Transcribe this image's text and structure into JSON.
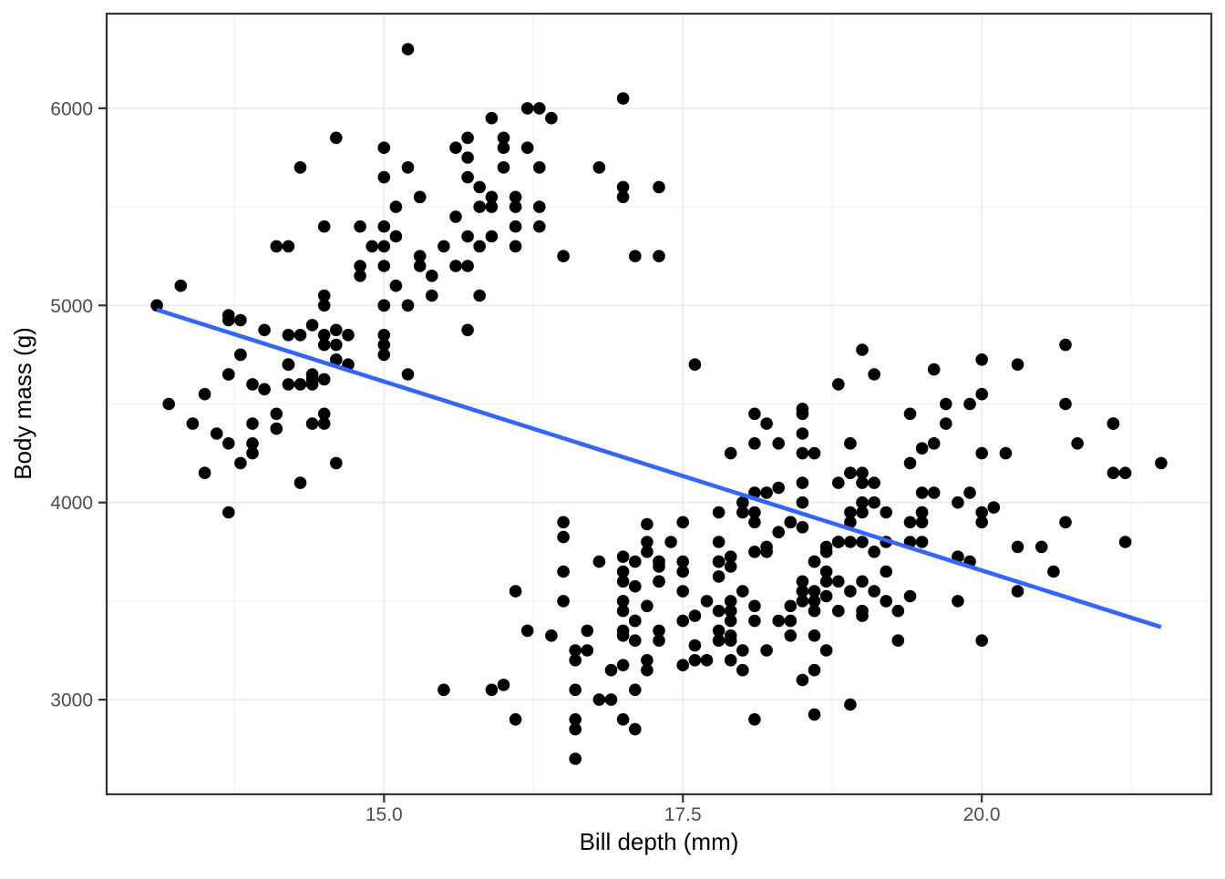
{
  "chart_data": {
    "type": "scatter",
    "title": "",
    "xlabel": "Bill depth (mm)",
    "ylabel": "Body mass (g)",
    "xlim": [
      12.68,
      21.92
    ],
    "ylim": [
      2520,
      6480
    ],
    "x_ticks": [
      15.0,
      17.5,
      20.0
    ],
    "x_tick_labels": [
      "15.0",
      "17.5",
      "20.0"
    ],
    "y_ticks": [
      3000,
      4000,
      5000,
      6000
    ],
    "y_tick_labels": [
      "3000",
      "4000",
      "5000",
      "6000"
    ],
    "x_minor_gridlines": [
      13.75,
      16.25,
      18.75,
      21.25
    ],
    "y_minor_gridlines": [
      3500,
      4500,
      5500
    ],
    "grid": true,
    "legend_position": "none",
    "colors": {
      "point": "#000000",
      "trend_line": "#3366FF",
      "panel_background": "#FFFFFF",
      "panel_border": "#333333",
      "grid_major": "#EBEBEB",
      "grid_minor": "#EFEFEF",
      "tick_mark": "#333333",
      "tick_text": "#4D4D4D",
      "axis_title": "#000000"
    },
    "trend_line": {
      "x_start": 13.1,
      "y_start": 4978,
      "x_end": 21.5,
      "y_end": 3368
    },
    "points": [
      [
        18.7,
        3750
      ],
      [
        17.4,
        3800
      ],
      [
        18,
        3250
      ],
      [
        19.3,
        3450
      ],
      [
        20.6,
        3650
      ],
      [
        17.8,
        3625
      ],
      [
        19.6,
        4675
      ],
      [
        18.1,
        3475
      ],
      [
        20.2,
        4250
      ],
      [
        17.1,
        3300
      ],
      [
        17.3,
        3700
      ],
      [
        17.6,
        3200
      ],
      [
        21.2,
        3800
      ],
      [
        21.1,
        4400
      ],
      [
        17.8,
        3700
      ],
      [
        19,
        3450
      ],
      [
        20.7,
        4500
      ],
      [
        18.4,
        3325
      ],
      [
        21.5,
        4200
      ],
      [
        18.3,
        3400
      ],
      [
        18.7,
        3600
      ],
      [
        19.2,
        3800
      ],
      [
        18.1,
        3950
      ],
      [
        17.2,
        3800
      ],
      [
        18.9,
        3800
      ],
      [
        18.6,
        3550
      ],
      [
        17.9,
        3200
      ],
      [
        18.6,
        3150
      ],
      [
        18.9,
        3950
      ],
      [
        16.7,
        3250
      ],
      [
        18.1,
        3900
      ],
      [
        17.8,
        3300
      ],
      [
        18.9,
        3900
      ],
      [
        17,
        3325
      ],
      [
        21.1,
        4150
      ],
      [
        20,
        3950
      ],
      [
        18.5,
        3550
      ],
      [
        19.3,
        3300
      ],
      [
        19.1,
        4650
      ],
      [
        18,
        3150
      ],
      [
        18.4,
        3900
      ],
      [
        18.5,
        3100
      ],
      [
        19.7,
        4400
      ],
      [
        16.9,
        3000
      ],
      [
        18.8,
        4600
      ],
      [
        19,
        3425
      ],
      [
        18.9,
        2975
      ],
      [
        17.9,
        3450
      ],
      [
        21.2,
        4150
      ],
      [
        17.7,
        3500
      ],
      [
        18.9,
        4300
      ],
      [
        17.9,
        3450
      ],
      [
        19.5,
        4050
      ],
      [
        18.1,
        2900
      ],
      [
        18.6,
        3700
      ],
      [
        17.5,
        3550
      ],
      [
        18.8,
        3800
      ],
      [
        16.6,
        2850
      ],
      [
        19.1,
        3750
      ],
      [
        16.9,
        3150
      ],
      [
        21.1,
        4400
      ],
      [
        17,
        3600
      ],
      [
        18.2,
        4050
      ],
      [
        17.1,
        2850
      ],
      [
        18,
        3950
      ],
      [
        16.2,
        3350
      ],
      [
        19.1,
        4100
      ],
      [
        16.6,
        3050
      ],
      [
        19.4,
        4450
      ],
      [
        19,
        3600
      ],
      [
        18.4,
        3900
      ],
      [
        17.2,
        3890
      ],
      [
        18.9,
        4150
      ],
      [
        17.5,
        3700
      ],
      [
        18.5,
        4250
      ],
      [
        16.8,
        3700
      ],
      [
        19.4,
        3900
      ],
      [
        16.1,
        3550
      ],
      [
        19.1,
        4000
      ],
      [
        17.2,
        3200
      ],
      [
        17.6,
        4700
      ],
      [
        18.8,
        3800
      ],
      [
        19.4,
        4200
      ],
      [
        17.8,
        3350
      ],
      [
        20.3,
        3550
      ],
      [
        19.5,
        3800
      ],
      [
        18.6,
        3500
      ],
      [
        19.2,
        3950
      ],
      [
        18.8,
        3600
      ],
      [
        18,
        3550
      ],
      [
        18.1,
        4300
      ],
      [
        17.1,
        3400
      ],
      [
        18.1,
        4450
      ],
      [
        17.3,
        3300
      ],
      [
        18.9,
        4300
      ],
      [
        18.6,
        3700
      ],
      [
        18.5,
        4350
      ],
      [
        16.1,
        2900
      ],
      [
        18.5,
        4100
      ],
      [
        17.9,
        3725
      ],
      [
        20,
        4725
      ],
      [
        16,
        3075
      ],
      [
        20,
        4250
      ],
      [
        18.6,
        2925
      ],
      [
        18.9,
        3550
      ],
      [
        17.2,
        3750
      ],
      [
        20,
        3900
      ],
      [
        17,
        3175
      ],
      [
        19,
        4775
      ],
      [
        16.5,
        3825
      ],
      [
        20.3,
        4700
      ],
      [
        17.7,
        3200
      ],
      [
        19.5,
        4275
      ],
      [
        20.7,
        3900
      ],
      [
        18.3,
        4075
      ],
      [
        17,
        2900
      ],
      [
        20.5,
        3775
      ],
      [
        17,
        3350
      ],
      [
        18.6,
        3325
      ],
      [
        17.2,
        3150
      ],
      [
        19.8,
        3500
      ],
      [
        17,
        3450
      ],
      [
        18.5,
        3875
      ],
      [
        15.9,
        3050
      ],
      [
        19,
        4000
      ],
      [
        17.6,
        3275
      ],
      [
        18.3,
        4300
      ],
      [
        17.1,
        3050
      ],
      [
        18,
        4000
      ],
      [
        17.9,
        3325
      ],
      [
        19.2,
        3500
      ],
      [
        18.5,
        3500
      ],
      [
        18.5,
        4475
      ],
      [
        17.6,
        3425
      ],
      [
        17.5,
        3900
      ],
      [
        17.5,
        3175
      ],
      [
        20.1,
        3975
      ],
      [
        16.5,
        3500
      ],
      [
        17.9,
        4250
      ],
      [
        17.1,
        3400
      ],
      [
        17.2,
        3475
      ],
      [
        15.5,
        3050
      ],
      [
        17,
        3725
      ],
      [
        16.8,
        3000
      ],
      [
        18.7,
        3650
      ],
      [
        18.6,
        4250
      ],
      [
        18.4,
        3475
      ],
      [
        17.8,
        3450
      ],
      [
        18.1,
        3750
      ],
      [
        17.1,
        3700
      ],
      [
        18.5,
        4000
      ],
      [
        13.2,
        4500
      ],
      [
        16.3,
        5700
      ],
      [
        14.1,
        4450
      ],
      [
        15.2,
        5700
      ],
      [
        14.5,
        5400
      ],
      [
        13.5,
        4550
      ],
      [
        14.6,
        4800
      ],
      [
        15.3,
        5200
      ],
      [
        13.4,
        4400
      ],
      [
        15.4,
        5150
      ],
      [
        13.7,
        4650
      ],
      [
        16.1,
        5550
      ],
      [
        13.7,
        4650
      ],
      [
        14.6,
        5850
      ],
      [
        14.6,
        4200
      ],
      [
        15.7,
        5850
      ],
      [
        13.5,
        4150
      ],
      [
        15.2,
        6300
      ],
      [
        14.5,
        4800
      ],
      [
        15.1,
        5350
      ],
      [
        14.3,
        5700
      ],
      [
        14.5,
        5000
      ],
      [
        14.5,
        4400
      ],
      [
        15.8,
        5050
      ],
      [
        13.1,
        5000
      ],
      [
        15.1,
        5100
      ],
      [
        14.3,
        4100
      ],
      [
        15,
        5650
      ],
      [
        14.3,
        4600
      ],
      [
        15.3,
        5550
      ],
      [
        15.3,
        5250
      ],
      [
        14.2,
        4700
      ],
      [
        14.5,
        5050
      ],
      [
        17,
        6050
      ],
      [
        14.8,
        5150
      ],
      [
        16.3,
        5400
      ],
      [
        13.7,
        4950
      ],
      [
        17.3,
        5250
      ],
      [
        13.6,
        4350
      ],
      [
        15.7,
        5350
      ],
      [
        13.7,
        3950
      ],
      [
        16,
        5700
      ],
      [
        13.7,
        4300
      ],
      [
        15,
        4750
      ],
      [
        15.9,
        5550
      ],
      [
        13.9,
        4600
      ],
      [
        13.9,
        4250
      ],
      [
        15.9,
        5500
      ],
      [
        13.3,
        5100
      ],
      [
        15.8,
        5300
      ],
      [
        14.2,
        4850
      ],
      [
        14.1,
        5300
      ],
      [
        14.4,
        4400
      ],
      [
        15,
        5000
      ],
      [
        14.4,
        4900
      ],
      [
        15.4,
        5050
      ],
      [
        13.9,
        4300
      ],
      [
        15,
        5000
      ],
      [
        14.5,
        4450
      ],
      [
        15.3,
        5550
      ],
      [
        13.8,
        4200
      ],
      [
        14.9,
        5300
      ],
      [
        13.9,
        4400
      ],
      [
        15.7,
        5650
      ],
      [
        14.2,
        4700
      ],
      [
        16.8,
        5700
      ],
      [
        14.4,
        4650
      ],
      [
        16.2,
        5800
      ],
      [
        14.2,
        4700
      ],
      [
        15,
        5800
      ],
      [
        15,
        5300
      ],
      [
        15.6,
        5800
      ],
      [
        15.6,
        5200
      ],
      [
        14.8,
        5400
      ],
      [
        15,
        4800
      ],
      [
        16,
        5800
      ],
      [
        14.2,
        4600
      ],
      [
        16.3,
        6000
      ],
      [
        13.8,
        4750
      ],
      [
        16.4,
        5950
      ],
      [
        14.5,
        4625
      ],
      [
        15.6,
        5450
      ],
      [
        14.6,
        4725
      ],
      [
        15.9,
        5350
      ],
      [
        13.8,
        4750
      ],
      [
        17.3,
        5600
      ],
      [
        14.4,
        4600
      ],
      [
        14.2,
        5300
      ],
      [
        14,
        4875
      ],
      [
        17,
        5550
      ],
      [
        15,
        5400
      ],
      [
        17.1,
        5250
      ],
      [
        14.5,
        4850
      ],
      [
        16.1,
        5300
      ],
      [
        14.7,
        4850
      ],
      [
        15.7,
        5200
      ],
      [
        15.8,
        5600
      ],
      [
        14.6,
        4875
      ],
      [
        14.4,
        4625
      ],
      [
        16.5,
        5250
      ],
      [
        15,
        4850
      ],
      [
        17,
        5600
      ],
      [
        15.5,
        5300
      ],
      [
        15,
        5200
      ],
      [
        13.8,
        4925
      ],
      [
        16.1,
        5500
      ],
      [
        14.7,
        4700
      ],
      [
        15.8,
        5500
      ],
      [
        14,
        4575
      ],
      [
        15.1,
        5500
      ],
      [
        15.2,
        5000
      ],
      [
        15.9,
        5950
      ],
      [
        15.2,
        4650
      ],
      [
        16.3,
        5500
      ],
      [
        14.1,
        4375
      ],
      [
        16,
        5850
      ],
      [
        15.7,
        4875
      ],
      [
        16.2,
        6000
      ],
      [
        13.7,
        4925
      ],
      [
        14.3,
        4850
      ],
      [
        15.7,
        5750
      ],
      [
        14.8,
        5200
      ],
      [
        16.1,
        5400
      ],
      [
        17.9,
        3500
      ],
      [
        19.5,
        3900
      ],
      [
        19.2,
        3650
      ],
      [
        18.7,
        3525
      ],
      [
        19.8,
        3725
      ],
      [
        17.8,
        3950
      ],
      [
        18.2,
        3250
      ],
      [
        18.2,
        3750
      ],
      [
        18.9,
        4150
      ],
      [
        19.9,
        3700
      ],
      [
        17.8,
        3800
      ],
      [
        20.3,
        3775
      ],
      [
        17.3,
        3700
      ],
      [
        18.1,
        4050
      ],
      [
        17.1,
        3575
      ],
      [
        19.6,
        4050
      ],
      [
        20,
        3300
      ],
      [
        17.8,
        3700
      ],
      [
        18.6,
        3450
      ],
      [
        18.2,
        4400
      ],
      [
        17.3,
        3600
      ],
      [
        17.5,
        3400
      ],
      [
        16.6,
        2900
      ],
      [
        19.4,
        3800
      ],
      [
        17.9,
        3300
      ],
      [
        19,
        4150
      ],
      [
        18.4,
        3400
      ],
      [
        19,
        3800
      ],
      [
        17.8,
        3700
      ],
      [
        20,
        4550
      ],
      [
        16.6,
        3200
      ],
      [
        20.8,
        4300
      ],
      [
        16.7,
        3350
      ],
      [
        18.8,
        4100
      ],
      [
        18.5,
        3600
      ],
      [
        16.5,
        3900
      ],
      [
        18.3,
        3850
      ],
      [
        20.7,
        4800
      ],
      [
        16.6,
        2700
      ],
      [
        19.9,
        4500
      ],
      [
        19.5,
        3950
      ],
      [
        17.5,
        3650
      ],
      [
        19.1,
        3550
      ],
      [
        17,
        3500
      ],
      [
        17.9,
        3675
      ],
      [
        18.5,
        4450
      ],
      [
        17.9,
        3400
      ],
      [
        19.6,
        4300
      ],
      [
        18.7,
        3250
      ],
      [
        17.3,
        3675
      ],
      [
        16.4,
        3325
      ],
      [
        19,
        3950
      ],
      [
        17.3,
        3600
      ],
      [
        19.7,
        4500
      ],
      [
        17.3,
        3350
      ],
      [
        18.8,
        3450
      ],
      [
        16.6,
        3250
      ],
      [
        19.9,
        4050
      ],
      [
        18.8,
        3800
      ],
      [
        19.4,
        3525
      ],
      [
        19.5,
        3950
      ],
      [
        16.5,
        3650
      ],
      [
        17,
        3650
      ],
      [
        19.8,
        4000
      ],
      [
        18.1,
        3400
      ],
      [
        18.2,
        3775
      ],
      [
        19,
        4100
      ],
      [
        18.7,
        3775
      ]
    ]
  }
}
